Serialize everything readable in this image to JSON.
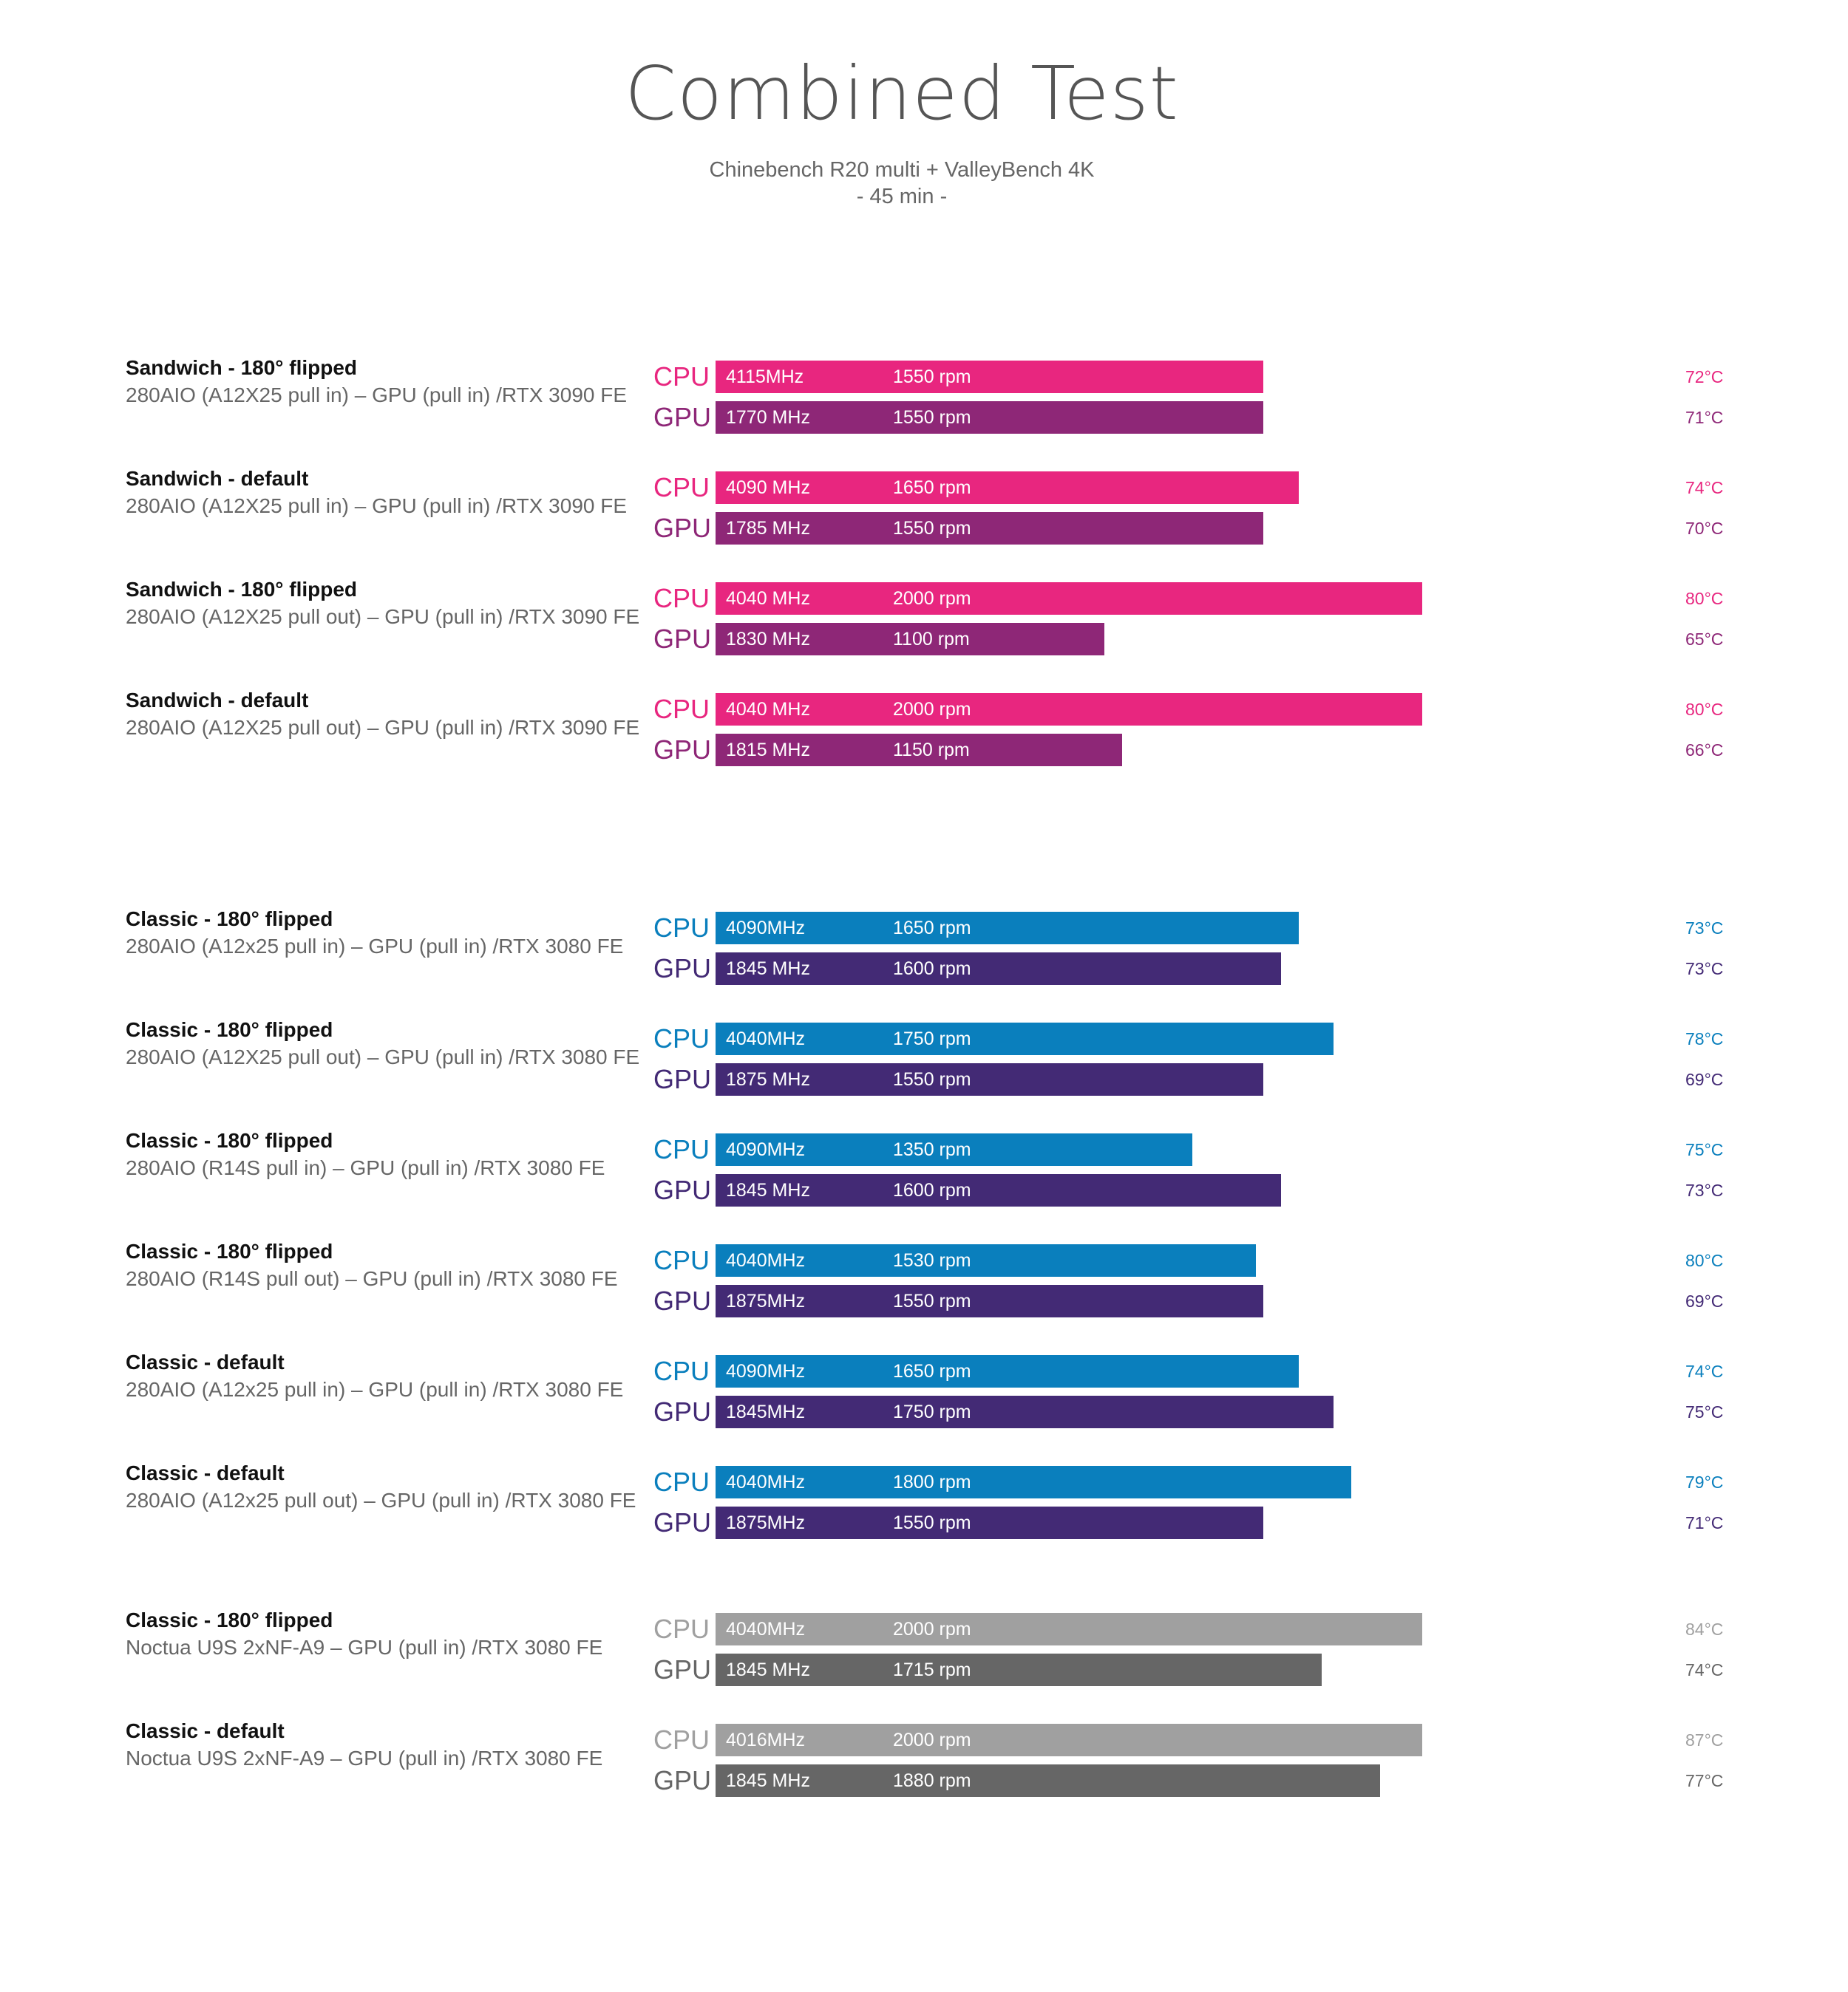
{
  "chart_data": {
    "type": "bar",
    "title": "Combined Test",
    "subtitle": [
      "Chinebench R20 multi + ValleyBench 4K",
      "- 45 min -"
    ],
    "xlim": [
      0,
      2150
    ],
    "colors": {
      "sandwich": {
        "cpu": "#e8267f",
        "gpu": "#8e2777"
      },
      "classic": {
        "cpu": "#0a7fbd",
        "gpu": "#432a75"
      },
      "noctua": {
        "cpu": "#a0a0a0",
        "gpu": "#666666"
      }
    },
    "groups": [
      {
        "name": "Sandwich - 180° flipped",
        "config": "280AIO (A12X25 pull in) – GPU (pull in) /RTX 3090 FE",
        "scheme": "sandwich",
        "cpu": {
          "label": "CPU",
          "clock": "4115MHz",
          "rpm": 1550,
          "rpm_text": "1550 rpm",
          "temp": "72°C"
        },
        "gpu": {
          "label": "GPU",
          "clock": "1770 MHz",
          "rpm": 1550,
          "rpm_text": "1550 rpm",
          "temp": "71°C"
        }
      },
      {
        "name": "Sandwich - default",
        "config": "280AIO (A12X25 pull in) – GPU (pull in) /RTX 3090 FE",
        "scheme": "sandwich",
        "cpu": {
          "label": "CPU",
          "clock": "4090 MHz",
          "rpm": 1650,
          "rpm_text": "1650 rpm",
          "temp": "74°C"
        },
        "gpu": {
          "label": "GPU",
          "clock": "1785 MHz",
          "rpm": 1550,
          "rpm_text": "1550 rpm",
          "temp": "70°C"
        }
      },
      {
        "name": "Sandwich - 180° flipped",
        "config": "280AIO (A12X25 pull out) – GPU (pull in) /RTX 3090 FE",
        "scheme": "sandwich",
        "cpu": {
          "label": "CPU",
          "clock": "4040 MHz",
          "rpm": 2000,
          "rpm_text": "2000 rpm",
          "temp": "80°C"
        },
        "gpu": {
          "label": "GPU",
          "clock": "1830 MHz",
          "rpm": 1100,
          "rpm_text": "1100 rpm",
          "temp": "65°C"
        }
      },
      {
        "name": "Sandwich - default",
        "config": "280AIO (A12X25 pull out) – GPU (pull in) /RTX 3090 FE",
        "scheme": "sandwich",
        "cpu": {
          "label": "CPU",
          "clock": "4040 MHz",
          "rpm": 2000,
          "rpm_text": "2000 rpm",
          "temp": "80°C"
        },
        "gpu": {
          "label": "GPU",
          "clock": "1815 MHz",
          "rpm": 1150,
          "rpm_text": "1150 rpm",
          "temp": "66°C"
        }
      },
      {
        "name": "Classic - 180° flipped",
        "config": "280AIO (A12x25 pull in) – GPU (pull in) /RTX 3080 FE",
        "scheme": "classic",
        "cpu": {
          "label": "CPU",
          "clock": "4090MHz",
          "rpm": 1650,
          "rpm_text": "1650 rpm",
          "temp": "73°C"
        },
        "gpu": {
          "label": "GPU",
          "clock": "1845 MHz",
          "rpm": 1600,
          "rpm_text": "1600 rpm",
          "temp": "73°C"
        }
      },
      {
        "name": "Classic - 180° flipped",
        "config": "280AIO (A12X25 pull out) – GPU (pull in) /RTX 3080 FE",
        "scheme": "classic",
        "cpu": {
          "label": "CPU",
          "clock": "4040MHz",
          "rpm": 1750,
          "rpm_text": "1750 rpm",
          "temp": "78°C"
        },
        "gpu": {
          "label": "GPU",
          "clock": "1875 MHz",
          "rpm": 1550,
          "rpm_text": "1550 rpm",
          "temp": "69°C"
        }
      },
      {
        "name": "Classic - 180° flipped",
        "config": "280AIO (R14S pull in) – GPU (pull in) /RTX 3080 FE",
        "scheme": "classic",
        "cpu": {
          "label": "CPU",
          "clock": "4090MHz",
          "rpm": 1350,
          "rpm_text": "1350 rpm",
          "temp": "75°C"
        },
        "gpu": {
          "label": "GPU",
          "clock": "1845 MHz",
          "rpm": 1600,
          "rpm_text": "1600 rpm",
          "temp": "73°C"
        }
      },
      {
        "name": "Classic - 180° flipped",
        "config": "280AIO (R14S pull out) – GPU (pull in) /RTX 3080 FE",
        "scheme": "classic",
        "cpu": {
          "label": "CPU",
          "clock": "4040MHz",
          "rpm": 1530,
          "rpm_text": "1530 rpm",
          "temp": "80°C"
        },
        "gpu": {
          "label": "GPU",
          "clock": "1875MHz",
          "rpm": 1550,
          "rpm_text": "1550 rpm",
          "temp": "69°C"
        }
      },
      {
        "name": "Classic - default",
        "config": "280AIO (A12x25 pull in) – GPU (pull in) /RTX 3080 FE",
        "scheme": "classic",
        "cpu": {
          "label": "CPU",
          "clock": "4090MHz",
          "rpm": 1650,
          "rpm_text": "1650 rpm",
          "temp": "74°C"
        },
        "gpu": {
          "label": "GPU",
          "clock": "1845MHz",
          "rpm": 1750,
          "rpm_text": "1750 rpm",
          "temp": "75°C"
        }
      },
      {
        "name": "Classic - default",
        "config": "280AIO (A12x25 pull out) – GPU (pull in) /RTX 3080 FE",
        "scheme": "classic",
        "cpu": {
          "label": "CPU",
          "clock": "4040MHz",
          "rpm": 1800,
          "rpm_text": "1800 rpm",
          "temp": "79°C"
        },
        "gpu": {
          "label": "GPU",
          "clock": "1875MHz",
          "rpm": 1550,
          "rpm_text": "1550 rpm",
          "temp": "71°C"
        }
      },
      {
        "name": "Classic - 180° flipped",
        "config": "Noctua U9S 2xNF-A9 – GPU (pull in) /RTX 3080 FE",
        "scheme": "noctua",
        "cpu": {
          "label": "CPU",
          "clock": "4040MHz",
          "rpm": 2000,
          "rpm_text": "2000 rpm",
          "temp": "84°C"
        },
        "gpu": {
          "label": "GPU",
          "clock": "1845 MHz",
          "rpm": 1715,
          "rpm_text": "1715 rpm",
          "temp": "74°C"
        }
      },
      {
        "name": "Classic - default",
        "config": "Noctua U9S 2xNF-A9 – GPU (pull in) /RTX 3080 FE",
        "scheme": "noctua",
        "cpu": {
          "label": "CPU",
          "clock": "4016MHz",
          "rpm": 2000,
          "rpm_text": "2000 rpm",
          "temp": "87°C"
        },
        "gpu": {
          "label": "GPU",
          "clock": "1845 MHz",
          "rpm": 1880,
          "rpm_text": "1880 rpm",
          "temp": "77°C"
        }
      }
    ]
  }
}
